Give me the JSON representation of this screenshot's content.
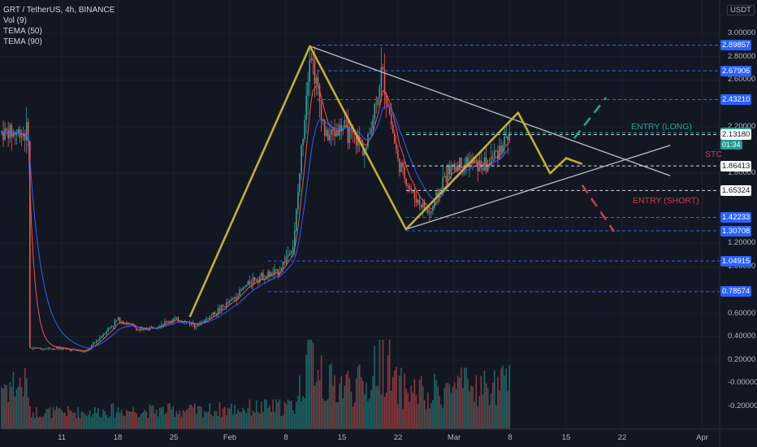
{
  "header": {
    "symbol_line": "GRT / TetherUS, 4h, BINANCE",
    "indicators": [
      "Vol (9)",
      "TEMA (50)",
      "TEMA (90)"
    ]
  },
  "price_axis": {
    "unit": "USDT",
    "tick_labels": [
      "3.00000",
      "2.80000",
      "2.60000",
      "2.20000",
      "1.80000",
      "1.20000",
      "1.00000",
      "0.60000",
      "0.40000",
      "0.20000",
      "-0.00000",
      "-0.20000"
    ],
    "ticks": [
      3.0,
      2.8,
      2.6,
      2.2,
      1.8,
      1.2,
      1.0,
      0.6,
      0.4,
      0.2
    ],
    "volume_ticks": [
      "-0.00000",
      "-0.20000"
    ],
    "countdown": "01:34"
  },
  "time_axis": {
    "labels": [
      "11",
      "18",
      "25",
      "Feb",
      "8",
      "15",
      "22",
      "Mar",
      "8",
      "15",
      "22",
      "Apr"
    ]
  },
  "levels": [
    {
      "label": "2.89857",
      "value": 2.89857,
      "color": "#2962ff"
    },
    {
      "label": "2.67906",
      "value": 2.67906,
      "color": "#2962ff"
    },
    {
      "label": "2.43210",
      "value": 2.4321,
      "color": "#2962ff"
    },
    {
      "label": "2.14865",
      "value": 2.14865,
      "color": "#26a69a"
    },
    {
      "label": "2.13180",
      "value": 2.1318,
      "color": "#ffffff"
    },
    {
      "label": "1.86413",
      "value": 1.86413,
      "color": "#ffffff"
    },
    {
      "label": "1.65324",
      "value": 1.65324,
      "color": "#ffffff"
    },
    {
      "label": "1.42233",
      "value": 1.42233,
      "color": "#2962ff"
    },
    {
      "label": "1.30708",
      "value": 1.30708,
      "color": "#2962ff"
    },
    {
      "label": "1.04915",
      "value": 1.04915,
      "color": "#2962ff"
    },
    {
      "label": "0.78574",
      "value": 0.78574,
      "color": "#2962ff"
    }
  ],
  "annotations": {
    "entry_long": "ENTRY (LONG)",
    "entry_short": "ENTRY (SHORT)",
    "stop_partial": "STC"
  },
  "chart_data": {
    "type": "candlestick",
    "title": "GRT / TetherUS, 4h, BINANCE",
    "ylim": [
      -0.3,
      3.1
    ],
    "x_axis_labels": [
      "11",
      "18",
      "25",
      "Feb",
      "8",
      "15",
      "22",
      "Mar",
      "8",
      "15",
      "22",
      "Apr"
    ],
    "price_path_approx": [
      {
        "x": "7 Jan",
        "y": 0.3
      },
      {
        "x": "11 Jan",
        "y": 0.3
      },
      {
        "x": "14 Jan",
        "y": 0.27
      },
      {
        "x": "18 Jan",
        "y": 0.55
      },
      {
        "x": "21 Jan",
        "y": 0.45
      },
      {
        "x": "25 Jan",
        "y": 0.55
      },
      {
        "x": "28 Jan",
        "y": 0.5
      },
      {
        "x": "1 Feb",
        "y": 0.7
      },
      {
        "x": "4 Feb",
        "y": 0.9
      },
      {
        "x": "7 Feb",
        "y": 0.95
      },
      {
        "x": "9 Feb",
        "y": 1.2
      },
      {
        "x": "11 Feb",
        "y": 2.89
      },
      {
        "x": "13 Feb",
        "y": 2.1
      },
      {
        "x": "15 Feb",
        "y": 2.2
      },
      {
        "x": "18 Feb",
        "y": 2.0
      },
      {
        "x": "20 Feb",
        "y": 2.68
      },
      {
        "x": "22 Feb",
        "y": 1.9
      },
      {
        "x": "24 Feb",
        "y": 1.6
      },
      {
        "x": "26 Feb",
        "y": 1.45
      },
      {
        "x": "28 Feb",
        "y": 1.8
      },
      {
        "x": "2 Mar",
        "y": 1.9
      },
      {
        "x": "5 Mar",
        "y": 1.86
      },
      {
        "x": "8 Mar",
        "y": 2.15
      }
    ],
    "series": [
      {
        "name": "TEMA (50)",
        "color": "#ef5350"
      },
      {
        "name": "TEMA (90)",
        "color": "#2962ff"
      },
      {
        "name": "Vol (9)",
        "color": "#26a69a"
      }
    ],
    "pattern_waypoints": [
      {
        "x": "27 Jan",
        "y": 0.57
      },
      {
        "x": "11 Feb",
        "y": 2.89
      },
      {
        "x": "23 Feb",
        "y": 1.32
      },
      {
        "x": "9 Mar",
        "y": 2.32
      },
      {
        "x": "13 Mar",
        "y": 1.8
      },
      {
        "x": "15 Mar",
        "y": 1.93
      },
      {
        "x": "17 Mar",
        "y": 1.88
      }
    ],
    "triangle_upper": [
      {
        "x": "11 Feb",
        "y": 2.89
      },
      {
        "x": "28 Mar",
        "y": 1.78
      }
    ],
    "triangle_lower": [
      {
        "x": "23 Feb",
        "y": 1.32
      },
      {
        "x": "28 Mar",
        "y": 2.04
      }
    ],
    "projection_long": [
      {
        "x": "16 Mar",
        "y": 2.1
      },
      {
        "x": "20 Mar",
        "y": 2.45
      }
    ],
    "projection_short": [
      {
        "x": "17 Mar",
        "y": 1.7
      },
      {
        "x": "21 Mar",
        "y": 1.3
      }
    ]
  },
  "colors": {
    "background": "#131722",
    "grid": "#1e222d",
    "up": "#26a69a",
    "down": "#ef5350",
    "pattern": "#c0b030",
    "trendline": "#b2b5be",
    "long": "#26a69a",
    "short": "#d03a4a"
  }
}
